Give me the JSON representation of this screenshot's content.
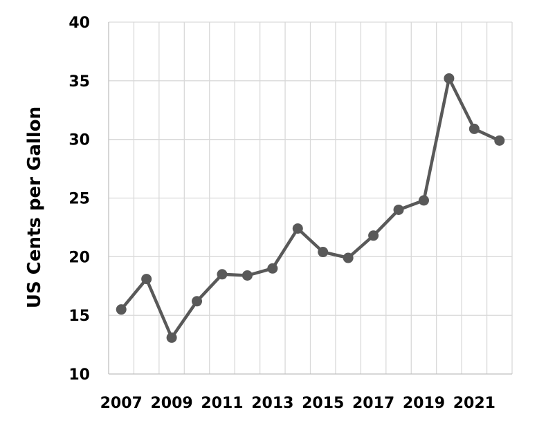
{
  "chart_data": {
    "type": "line",
    "title": "",
    "xlabel": "",
    "ylabel": "US Cents per Gallon",
    "x": [
      2007,
      2008,
      2009,
      2010,
      2011,
      2012,
      2013,
      2014,
      2015,
      2016,
      2017,
      2018,
      2019,
      2020,
      2021,
      2022
    ],
    "x_tick_labels": [
      "2007",
      "2009",
      "2011",
      "2013",
      "2015",
      "2017",
      "2019",
      "2021"
    ],
    "y_tick_labels": [
      "40",
      "35",
      "30",
      "25",
      "20",
      "15",
      "10"
    ],
    "ylim": [
      10,
      40
    ],
    "y_ticks": [
      10,
      15,
      20,
      25,
      30,
      35,
      40
    ],
    "grid": true,
    "legend": "none",
    "series": [
      {
        "values": [
          15.5,
          18.1,
          13.1,
          16.2,
          18.5,
          18.4,
          19.0,
          22.4,
          20.4,
          19.9,
          21.8,
          24.0,
          24.8,
          35.2,
          30.9,
          29.9
        ],
        "color": "#595959"
      }
    ]
  }
}
